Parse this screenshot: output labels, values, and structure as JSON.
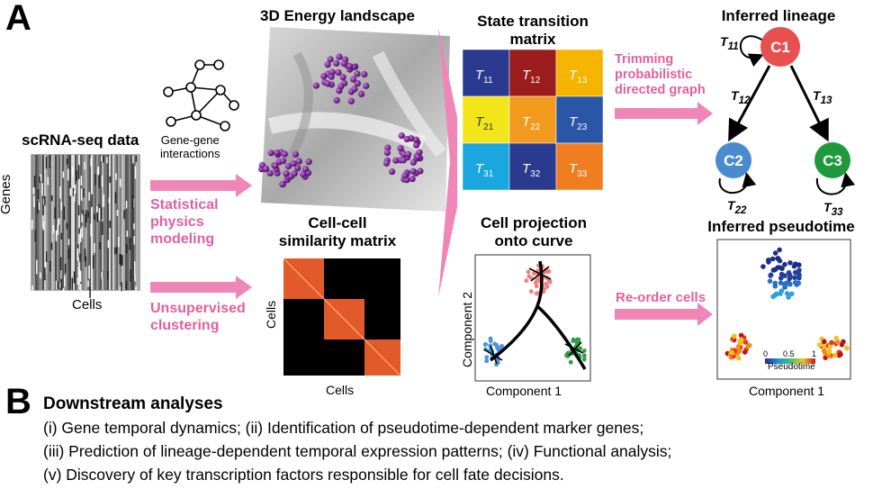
{
  "panel_a": {
    "letter": "A",
    "scrna_title": "scRNA-seq data",
    "genes_label": "Genes",
    "cells_label": "Cells",
    "gene_interactions": "Gene-gene\ninteractions",
    "stat_physics": "Statistical\nphysics\nmodeling",
    "unsupervised": "Unsupervised\nclustering",
    "energy_title": "3D Energy landscape",
    "similarity_title": "Cell-cell\nsimilarity matrix",
    "similarity_xlabel": "Cells",
    "similarity_ylabel": "Cells",
    "transition_title": "State transition\nmatrix",
    "trimming": "Trimming\nprobabilistic\ndirected graph",
    "projection_title": "Cell projection\nonto curve",
    "component1": "Component 1",
    "component2": "Component 2",
    "reorder": "Re-order cells",
    "lineage_title": "Inferred lineage",
    "pseudotime_title": "Inferred pseudotime",
    "pseudotime_xlabel": "Component 1",
    "pseudotime_bar_label": "Pseudotime",
    "pseudotime_ticks": [
      "0",
      "0.5",
      "1"
    ],
    "matrix_cells": [
      {
        "sub": "11",
        "color": "#2a3b8f"
      },
      {
        "sub": "12",
        "color": "#9b1c1c"
      },
      {
        "sub": "13",
        "color": "#f5b400"
      },
      {
        "sub": "21",
        "color": "#f2e61a"
      },
      {
        "sub": "22",
        "color": "#f29a1e"
      },
      {
        "sub": "23",
        "color": "#2a56a8"
      },
      {
        "sub": "31",
        "color": "#1aa6df"
      },
      {
        "sub": "32",
        "color": "#2a3b8f"
      },
      {
        "sub": "33",
        "color": "#f07e20"
      }
    ],
    "nodes": [
      {
        "label": "C1",
        "color": "#e8504f"
      },
      {
        "label": "C2",
        "color": "#4a8bd0"
      },
      {
        "label": "C3",
        "color": "#1e9a3c"
      }
    ],
    "edge_labels": [
      "11",
      "12",
      "13",
      "22",
      "33"
    ]
  },
  "panel_b": {
    "letter": "B",
    "title": "Downstream analyses",
    "lines": [
      "(i) Gene temporal dynamics;  (ii) Identification of pseudotime-dependent marker genes;",
      "(iii) Prediction of lineage-dependent temporal expression patterns;  (iv) Functional analysis;",
      "(v) Discovery of key transcription factors responsible for cell fate decisions."
    ]
  },
  "colors": {
    "arrow": "#ef86b8",
    "accent": "#e0609e"
  }
}
